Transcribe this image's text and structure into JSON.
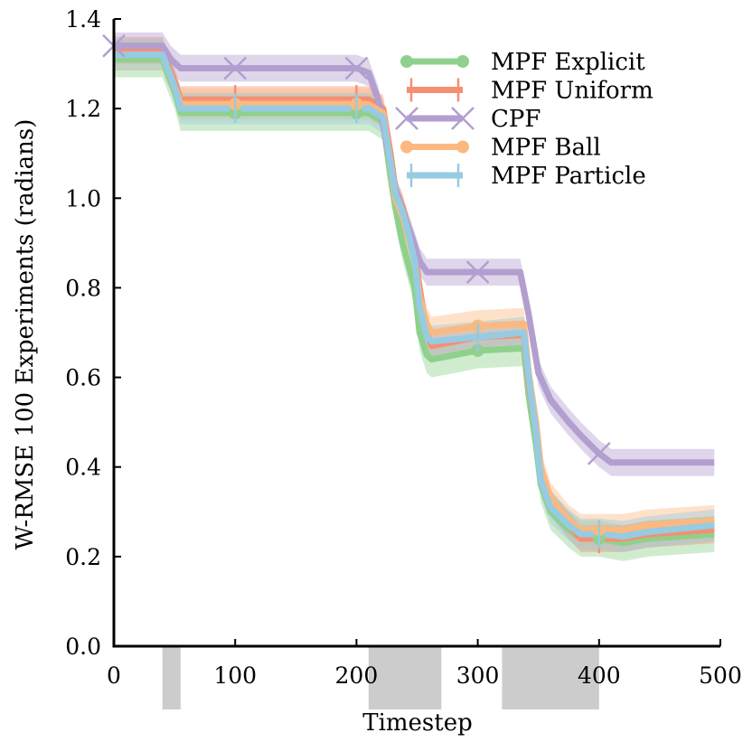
{
  "chart_data": {
    "type": "line",
    "title": "",
    "xlabel": "Timestep",
    "ylabel": "W-RMSE 100 Experiments (radians)",
    "xlim": [
      0,
      500
    ],
    "ylim": [
      0.0,
      1.4
    ],
    "x_ticks": [
      0,
      100,
      200,
      300,
      400,
      500
    ],
    "y_ticks": [
      0.0,
      0.2,
      0.4,
      0.6,
      0.8,
      1.0,
      1.2,
      1.4
    ],
    "x_tick_labels": [
      "0",
      "100",
      "200",
      "300",
      "400",
      "500"
    ],
    "y_tick_labels": [
      "0.0",
      "0.2",
      "0.4",
      "0.6",
      "0.8",
      "1.0",
      "1.2",
      "1.4"
    ],
    "grid": false,
    "legend_position": "top-right",
    "shaded_intervals": [
      [
        40,
        55
      ],
      [
        210,
        270
      ],
      [
        320,
        400
      ]
    ],
    "series": [
      {
        "name": "MPF Explicit",
        "color": "#8fd18c",
        "marker": "circle",
        "x": [
          0,
          40,
          50,
          55,
          210,
          222,
          228,
          232,
          238,
          242,
          248,
          252,
          258,
          262,
          300,
          338,
          342,
          348,
          352,
          360,
          375,
          385,
          400,
          420,
          440,
          495
        ],
        "y": [
          1.31,
          1.31,
          1.24,
          1.19,
          1.19,
          1.17,
          1.05,
          0.98,
          0.9,
          0.86,
          0.8,
          0.7,
          0.65,
          0.64,
          0.66,
          0.665,
          0.56,
          0.45,
          0.36,
          0.3,
          0.26,
          0.24,
          0.24,
          0.23,
          0.24,
          0.25
        ],
        "err": 0.04,
        "marker_x": [
          100,
          200,
          300,
          400
        ]
      },
      {
        "name": "MPF Uniform",
        "color": "#f58f72",
        "marker": "vline",
        "x": [
          0,
          40,
          50,
          55,
          210,
          222,
          228,
          232,
          238,
          242,
          248,
          252,
          258,
          262,
          300,
          338,
          342,
          348,
          352,
          360,
          375,
          385,
          400,
          420,
          440,
          495
        ],
        "y": [
          1.33,
          1.33,
          1.26,
          1.22,
          1.22,
          1.2,
          1.1,
          1.02,
          0.98,
          0.94,
          0.88,
          0.8,
          0.7,
          0.67,
          0.69,
          0.695,
          0.59,
          0.48,
          0.38,
          0.32,
          0.27,
          0.24,
          0.24,
          0.24,
          0.25,
          0.26
        ],
        "err": 0.03,
        "marker_x": [
          100,
          200,
          300,
          400
        ]
      },
      {
        "name": "CPF",
        "color": "#b39ed0",
        "marker": "x",
        "x": [
          0,
          40,
          47,
          55,
          200,
          210,
          218,
          225,
          232,
          238,
          245,
          252,
          258,
          265,
          300,
          335,
          342,
          350,
          360,
          375,
          385,
          400,
          410,
          420,
          495
        ],
        "y": [
          1.34,
          1.34,
          1.31,
          1.29,
          1.29,
          1.28,
          1.22,
          1.12,
          1.02,
          0.97,
          0.92,
          0.86,
          0.835,
          0.835,
          0.835,
          0.835,
          0.74,
          0.61,
          0.55,
          0.5,
          0.47,
          0.43,
          0.41,
          0.41,
          0.41
        ],
        "err": 0.03,
        "marker_x": [
          0,
          100,
          200,
          300,
          400
        ]
      },
      {
        "name": "MPF Ball",
        "color": "#fbb97f",
        "marker": "circle",
        "x": [
          0,
          40,
          50,
          55,
          210,
          222,
          228,
          232,
          238,
          242,
          248,
          252,
          258,
          262,
          300,
          338,
          342,
          348,
          352,
          360,
          375,
          385,
          400,
          420,
          440,
          495
        ],
        "y": [
          1.32,
          1.32,
          1.25,
          1.21,
          1.21,
          1.19,
          1.08,
          1.0,
          0.96,
          0.92,
          0.86,
          0.78,
          0.72,
          0.7,
          0.715,
          0.72,
          0.61,
          0.5,
          0.4,
          0.33,
          0.28,
          0.26,
          0.26,
          0.26,
          0.27,
          0.28
        ],
        "err": 0.035,
        "marker_x": [
          100,
          200,
          300,
          400
        ]
      },
      {
        "name": "MPF Particle",
        "color": "#96cbe2",
        "marker": "vline",
        "x": [
          0,
          40,
          50,
          55,
          210,
          222,
          228,
          232,
          238,
          242,
          248,
          252,
          258,
          262,
          300,
          338,
          342,
          348,
          352,
          360,
          375,
          385,
          400,
          420,
          440,
          495
        ],
        "y": [
          1.32,
          1.32,
          1.25,
          1.2,
          1.2,
          1.18,
          1.08,
          1.01,
          0.97,
          0.93,
          0.86,
          0.76,
          0.69,
          0.68,
          0.69,
          0.7,
          0.6,
          0.48,
          0.37,
          0.31,
          0.27,
          0.25,
          0.25,
          0.245,
          0.255,
          0.27
        ],
        "err": 0.035,
        "marker_x": [
          100,
          200,
          300,
          400
        ]
      }
    ]
  }
}
